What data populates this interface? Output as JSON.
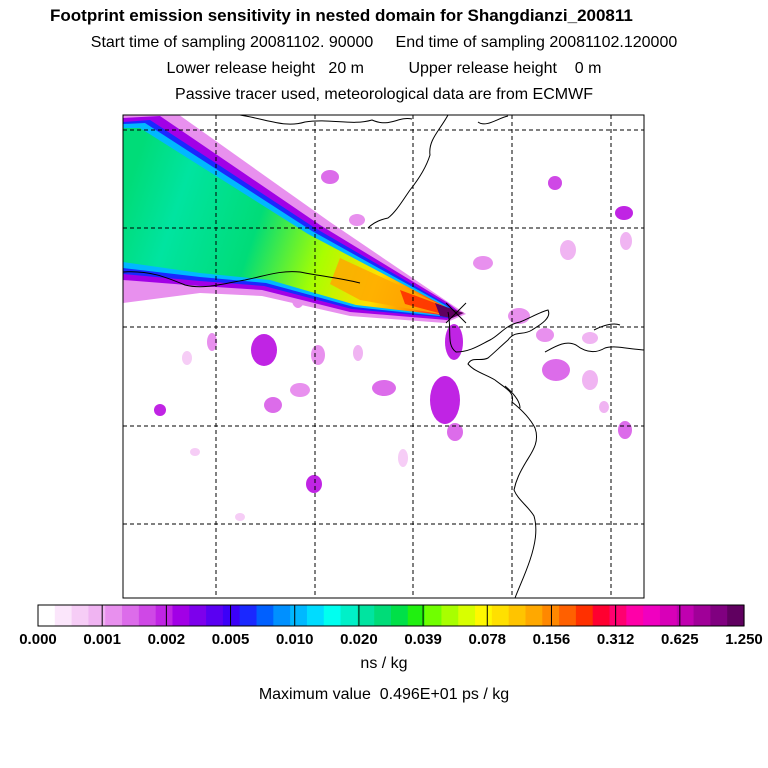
{
  "titles": {
    "line1": "Footprint emission sensitivity in nested domain for Shangdianzi_200811",
    "line2": "Start time of sampling 20081102. 90000     End time of sampling 20081102.120000",
    "line3": "Lower release height   20 m          Upper release height    0 m",
    "line4": "Passive tracer used, meteorological data are from ECMWF"
  },
  "colorbar": {
    "tick_labels": [
      "0.000",
      "0.001",
      "0.002",
      "0.005",
      "0.010",
      "0.020",
      "0.039",
      "0.078",
      "0.156",
      "0.312",
      "0.625",
      "1.250"
    ],
    "unit": "ns / kg",
    "colors": [
      "#ffffff",
      "#fbe6fb",
      "#f6cdf6",
      "#f0b4f2",
      "#e890ee",
      "#dc6cea",
      "#cf48e6",
      "#c024e4",
      "#a200e6",
      "#7d00ec",
      "#5a00f2",
      "#3c00f8",
      "#1a28ff",
      "#0060ff",
      "#0090ff",
      "#00b8ff",
      "#00dcff",
      "#00fff0",
      "#00f0c8",
      "#00e4a0",
      "#00dc78",
      "#00e048",
      "#20f010",
      "#70ff00",
      "#a8ff00",
      "#d8ff00",
      "#fff800",
      "#ffe000",
      "#ffc400",
      "#ffa800",
      "#ff8800",
      "#ff6000",
      "#ff3000",
      "#ff0030",
      "#ff0070",
      "#ff00a8",
      "#f000c0",
      "#d800b8",
      "#c000b0",
      "#a00098",
      "#800080",
      "#600060"
    ]
  },
  "maximum_value": "Maximum value  0.496E+01 ps / kg",
  "chart_data": {
    "type": "heatmap",
    "title": "Footprint emission sensitivity in nested domain for Shangdianzi_200811",
    "colorbar_unit": "ns / kg",
    "colorbar_levels": [
      0.0,
      0.001,
      0.002,
      0.005,
      0.01,
      0.02,
      0.039,
      0.078,
      0.156,
      0.312,
      0.625,
      1.25
    ],
    "maximum_value_ps_per_kg": 4.96,
    "release_site": "Shangdianzi",
    "plume_direction": "from west-northwest toward the release site",
    "grid": true,
    "legend_placement": "bottom"
  }
}
